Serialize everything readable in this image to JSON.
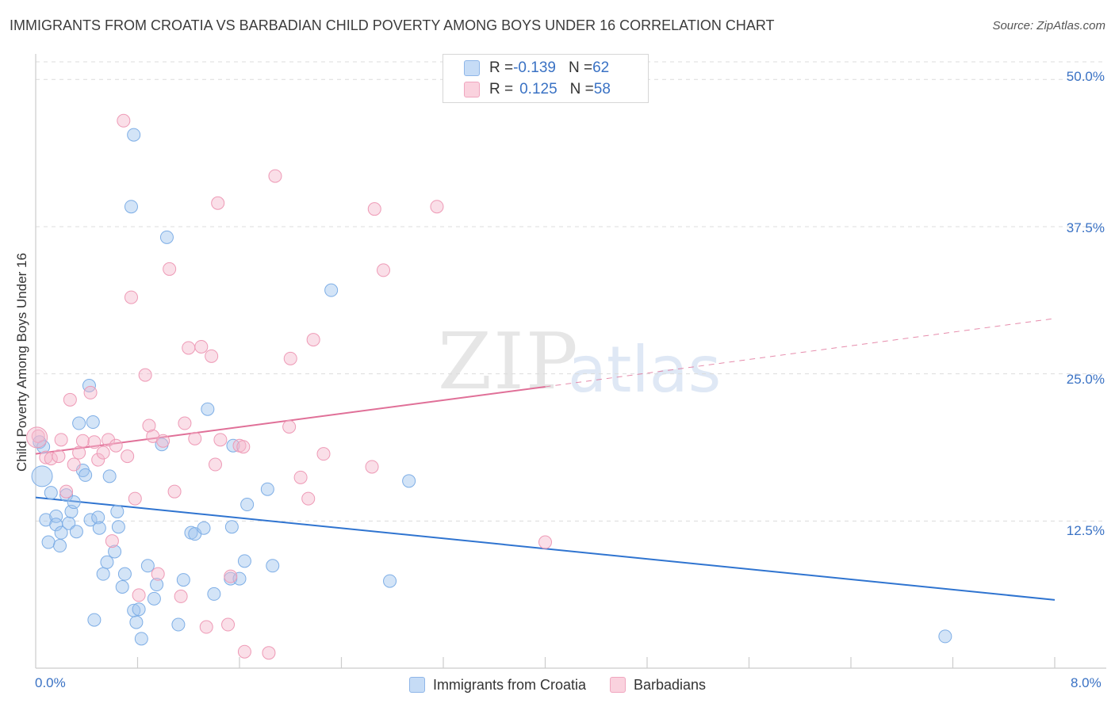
{
  "title": "IMMIGRANTS FROM CROATIA VS BARBADIAN CHILD POVERTY AMONG BOYS UNDER 16 CORRELATION CHART",
  "source": "Source: ZipAtlas.com",
  "watermark": {
    "zip": "ZIP",
    "atlas": "atlas"
  },
  "legend_top": [
    {
      "r_label": "R = ",
      "r_value": "-0.139",
      "n_label": "N = ",
      "n_value": "62"
    },
    {
      "r_label": "R = ",
      "r_value": "0.125",
      "n_label": "N = ",
      "n_value": "58"
    }
  ],
  "legend_bottom": [
    "Immigrants from Croatia",
    "Barbadians"
  ],
  "chart_data": {
    "type": "scatter",
    "title": "IMMIGRANTS FROM CROATIA VS BARBADIAN CHILD POVERTY AMONG BOYS UNDER 16 CORRELATION CHART",
    "ylabel": "Child Poverty Among Boys Under 16",
    "xlim": [
      0,
      8
    ],
    "ylim": [
      0,
      51.5
    ],
    "y_ticks": [
      12.5,
      25.0,
      37.5,
      50.0
    ],
    "y_tick_labels": [
      "12.5%",
      "25.0%",
      "37.5%",
      "50.0%"
    ],
    "x_tick_labels": [
      "0.0%",
      "8.0%"
    ],
    "grid": true,
    "colors": {
      "croatia": "#9dc3ee",
      "croatia_line": "#2f74d0",
      "barbadian": "#f4b8cc",
      "barbadian_line": "#e07098"
    },
    "series": [
      {
        "name": "Immigrants from Croatia",
        "color": "#9dc3ee",
        "trend": {
          "x0": 0.0,
          "y0": 14.5,
          "x1": 8.0,
          "y1": 5.8
        },
        "points": [
          [
            0.03,
            19.2
          ],
          [
            0.05,
            16.3
          ],
          [
            0.06,
            18.8
          ],
          [
            0.08,
            12.6
          ],
          [
            0.1,
            10.7
          ],
          [
            0.12,
            14.9
          ],
          [
            0.16,
            12.9
          ],
          [
            0.16,
            12.2
          ],
          [
            0.19,
            10.4
          ],
          [
            0.2,
            11.5
          ],
          [
            0.24,
            14.7
          ],
          [
            0.26,
            12.3
          ],
          [
            0.28,
            13.3
          ],
          [
            0.3,
            14.1
          ],
          [
            0.32,
            11.6
          ],
          [
            0.34,
            20.8
          ],
          [
            0.37,
            16.8
          ],
          [
            0.39,
            16.4
          ],
          [
            0.42,
            24.0
          ],
          [
            0.43,
            12.6
          ],
          [
            0.45,
            20.9
          ],
          [
            0.46,
            4.1
          ],
          [
            0.49,
            12.8
          ],
          [
            0.5,
            11.9
          ],
          [
            0.53,
            8.0
          ],
          [
            0.56,
            9.0
          ],
          [
            0.58,
            16.3
          ],
          [
            0.62,
            9.9
          ],
          [
            0.64,
            13.3
          ],
          [
            0.65,
            12.0
          ],
          [
            0.68,
            6.9
          ],
          [
            0.7,
            8.0
          ],
          [
            0.75,
            39.2
          ],
          [
            0.77,
            45.3
          ],
          [
            0.77,
            4.9
          ],
          [
            0.79,
            3.9
          ],
          [
            0.81,
            5.0
          ],
          [
            0.83,
            2.5
          ],
          [
            0.88,
            8.7
          ],
          [
            0.93,
            5.9
          ],
          [
            0.95,
            7.1
          ],
          [
            0.99,
            19.0
          ],
          [
            1.03,
            36.6
          ],
          [
            1.12,
            3.7
          ],
          [
            1.16,
            7.5
          ],
          [
            1.22,
            11.5
          ],
          [
            1.25,
            11.4
          ],
          [
            1.32,
            11.9
          ],
          [
            1.35,
            22.0
          ],
          [
            1.4,
            6.3
          ],
          [
            1.53,
            7.6
          ],
          [
            1.54,
            12.0
          ],
          [
            1.55,
            18.9
          ],
          [
            1.6,
            7.6
          ],
          [
            1.64,
            9.1
          ],
          [
            1.66,
            13.9
          ],
          [
            1.82,
            15.2
          ],
          [
            1.86,
            8.7
          ],
          [
            2.32,
            32.1
          ],
          [
            2.78,
            7.4
          ],
          [
            2.93,
            15.9
          ],
          [
            7.14,
            2.7
          ]
        ]
      },
      {
        "name": "Barbadians",
        "color": "#f4b8cc",
        "trend": {
          "x0": 0.0,
          "y0": 18.2,
          "x1": 4.0,
          "y1": 23.9
        },
        "trend_ext": {
          "x0": 4.0,
          "y0": 23.9,
          "x1": 8.0,
          "y1": 29.7
        },
        "points": [
          [
            0.02,
            19.7
          ],
          [
            0.08,
            17.9
          ],
          [
            0.12,
            17.8
          ],
          [
            0.18,
            18.0
          ],
          [
            0.2,
            19.4
          ],
          [
            0.24,
            15.0
          ],
          [
            0.27,
            22.8
          ],
          [
            0.3,
            17.3
          ],
          [
            0.34,
            18.3
          ],
          [
            0.37,
            19.3
          ],
          [
            0.43,
            23.4
          ],
          [
            0.46,
            19.2
          ],
          [
            0.49,
            17.7
          ],
          [
            0.53,
            18.3
          ],
          [
            0.57,
            19.4
          ],
          [
            0.6,
            10.8
          ],
          [
            0.63,
            18.9
          ],
          [
            0.69,
            46.5
          ],
          [
            0.72,
            18.0
          ],
          [
            0.75,
            31.5
          ],
          [
            0.78,
            14.4
          ],
          [
            0.81,
            6.2
          ],
          [
            0.86,
            24.9
          ],
          [
            0.89,
            20.6
          ],
          [
            0.92,
            19.7
          ],
          [
            0.96,
            8.0
          ],
          [
            1.0,
            19.3
          ],
          [
            1.05,
            33.9
          ],
          [
            1.09,
            15.0
          ],
          [
            1.14,
            6.1
          ],
          [
            1.17,
            20.8
          ],
          [
            1.2,
            27.2
          ],
          [
            1.25,
            19.5
          ],
          [
            1.3,
            27.3
          ],
          [
            1.34,
            3.5
          ],
          [
            1.38,
            26.5
          ],
          [
            1.41,
            17.3
          ],
          [
            1.43,
            39.5
          ],
          [
            1.45,
            19.4
          ],
          [
            1.51,
            3.7
          ],
          [
            1.53,
            7.8
          ],
          [
            1.6,
            18.9
          ],
          [
            1.63,
            18.8
          ],
          [
            1.64,
            1.4
          ],
          [
            1.83,
            1.3
          ],
          [
            1.88,
            41.8
          ],
          [
            1.99,
            20.5
          ],
          [
            2.0,
            26.3
          ],
          [
            2.08,
            16.2
          ],
          [
            2.14,
            14.4
          ],
          [
            2.18,
            27.9
          ],
          [
            2.26,
            18.2
          ],
          [
            2.64,
            17.1
          ],
          [
            2.66,
            39.0
          ],
          [
            2.73,
            33.8
          ],
          [
            3.15,
            39.2
          ],
          [
            4.0,
            10.7
          ],
          [
            0.01,
            19.6
          ]
        ]
      }
    ]
  }
}
